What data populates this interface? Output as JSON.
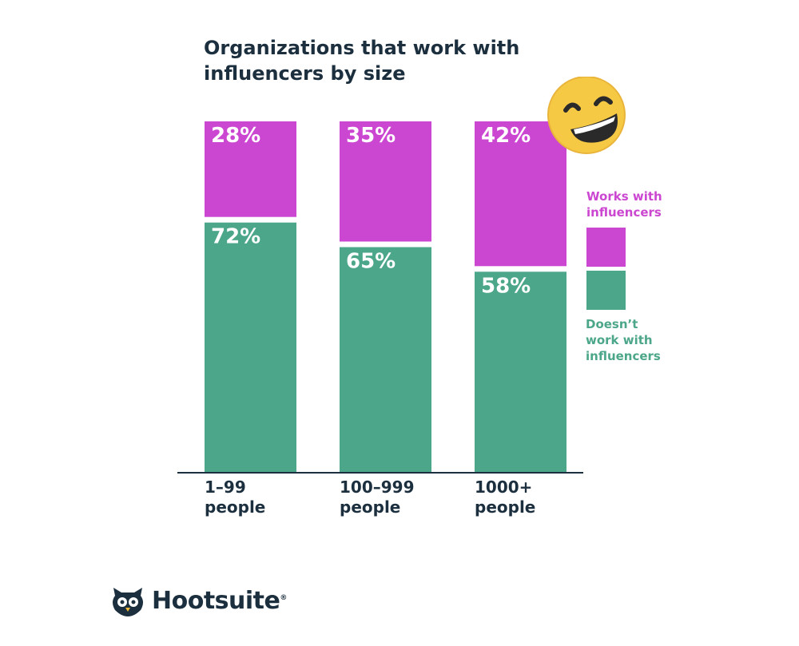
{
  "chart_data": {
    "type": "bar",
    "stacked": true,
    "percent": true,
    "title": "Organizations that work with influencers by size",
    "categories": [
      "1–99 people",
      "100–999 people",
      "1000+ people"
    ],
    "category_lines": [
      [
        "1–99",
        "people"
      ],
      [
        "100–999",
        "people"
      ],
      [
        "1000+",
        "people"
      ]
    ],
    "series": [
      {
        "name": "Works with influencers",
        "values": [
          28,
          35,
          42
        ],
        "color": "#cc47d1"
      },
      {
        "name": "Doesn’t work with influencers",
        "values": [
          72,
          65,
          58
        ],
        "color": "#4ca68a"
      }
    ],
    "value_labels": {
      "works": [
        "28%",
        "35%",
        "42%"
      ],
      "doesnt": [
        "72%",
        "65%",
        "58%"
      ]
    },
    "ylim": [
      0,
      100
    ],
    "legend": "right",
    "legend_lines": {
      "works": [
        "Works with",
        "influencers"
      ],
      "doesnt": [
        "Doesn’t",
        "work with",
        "influencers"
      ]
    },
    "grid": false
  },
  "brand": {
    "name": "Hootsuite",
    "mark": "®",
    "icon": "owl-icon"
  },
  "decoration": {
    "icon": "grinning-face-emoji"
  }
}
